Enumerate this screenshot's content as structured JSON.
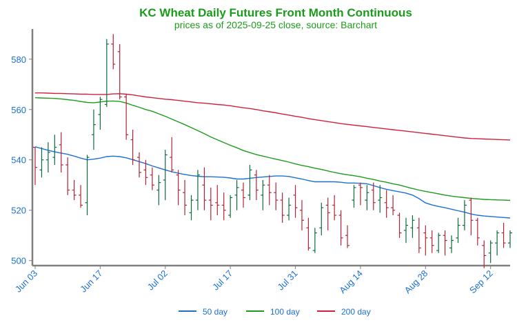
{
  "colors": {
    "title": "#1a9c1a",
    "axis_text": "#1a6fd6",
    "axis_line": "#7f7f7f",
    "up_bar": "#0a6b3b",
    "down_bar": "#b22234",
    "ma50": "#1a6fd6",
    "ma100": "#1a9c1a",
    "ma200": "#d0203a"
  },
  "chart_data": {
    "type": "ohlc",
    "title": "KC Wheat Daily Futures Front Month Continuous",
    "subtitle": "prices as of 2025-09-25 close, source: Barchart",
    "ylim": [
      498,
      592
    ],
    "yticks": [
      500,
      520,
      540,
      560,
      580
    ],
    "x_tick_labels": [
      "Jun 03",
      "Jun 17",
      "Jul 02",
      "Jul 17",
      "Jul 31",
      "Aug 14",
      "Aug 28",
      "Sep 12"
    ],
    "x_tick_index": [
      0,
      10,
      20,
      30,
      40,
      50,
      60,
      70
    ],
    "grid": false,
    "legend_position": "bottom",
    "ohlc": [
      [
        545,
        545,
        530,
        537
      ],
      [
        536,
        545,
        533,
        540
      ],
      [
        540,
        547,
        535,
        543
      ],
      [
        541,
        550,
        538,
        545
      ],
      [
        546,
        551,
        535,
        538
      ],
      [
        538,
        541,
        526,
        528
      ],
      [
        528,
        532,
        524,
        526
      ],
      [
        526,
        530,
        521,
        522
      ],
      [
        523,
        542,
        518,
        541
      ],
      [
        550,
        560,
        544,
        554
      ],
      [
        558,
        565,
        552,
        564
      ],
      [
        562,
        588,
        561,
        586
      ],
      [
        586,
        590,
        576,
        578
      ],
      [
        583,
        586,
        564,
        565
      ],
      [
        565,
        566,
        548,
        550
      ],
      [
        548,
        552,
        538,
        540
      ],
      [
        541,
        543,
        533,
        535
      ],
      [
        536,
        540,
        530,
        533
      ],
      [
        534,
        537,
        528,
        530
      ],
      [
        528,
        534,
        522,
        531
      ],
      [
        532,
        544,
        524,
        542
      ],
      [
        541,
        549,
        535,
        536
      ],
      [
        534,
        536,
        522,
        528
      ],
      [
        527,
        532,
        518,
        522
      ],
      [
        519,
        526,
        516,
        524
      ],
      [
        524,
        536,
        520,
        534
      ],
      [
        530,
        537,
        520,
        524
      ],
      [
        524,
        529,
        516,
        522
      ],
      [
        523,
        530,
        518,
        522
      ],
      [
        522,
        527,
        516,
        520
      ],
      [
        518,
        526,
        517,
        525
      ],
      [
        526,
        532,
        520,
        529
      ],
      [
        528,
        531,
        521,
        525
      ],
      [
        526,
        538,
        524,
        536
      ],
      [
        534,
        536,
        524,
        528
      ],
      [
        526,
        532,
        520,
        530
      ],
      [
        530,
        534,
        522,
        527
      ],
      [
        527,
        531,
        520,
        524
      ],
      [
        524,
        527,
        515,
        518
      ],
      [
        518,
        525,
        516,
        522
      ],
      [
        526,
        530,
        517,
        521
      ],
      [
        520,
        524,
        512,
        516
      ],
      [
        513,
        517,
        504,
        505
      ],
      [
        504,
        513,
        503,
        511
      ],
      [
        513,
        523,
        510,
        521
      ],
      [
        522,
        525,
        512,
        519
      ],
      [
        522,
        526,
        516,
        518
      ],
      [
        518,
        520,
        506,
        509
      ],
      [
        510,
        514,
        505,
        506
      ],
      [
        524,
        530,
        521,
        529
      ],
      [
        530,
        531,
        522,
        529
      ],
      [
        524,
        530,
        520,
        527
      ],
      [
        528,
        531,
        520,
        523
      ],
      [
        524,
        530,
        519,
        525
      ],
      [
        523,
        528,
        517,
        521
      ],
      [
        521,
        526,
        518,
        520
      ],
      [
        518,
        519,
        509,
        511
      ],
      [
        512,
        517,
        507,
        514
      ],
      [
        513,
        518,
        509,
        516
      ],
      [
        513,
        517,
        503,
        505
      ],
      [
        511,
        514,
        502,
        509
      ],
      [
        509,
        512,
        503,
        506
      ],
      [
        504,
        511,
        503,
        510
      ],
      [
        510,
        512,
        502,
        508
      ],
      [
        505,
        510,
        503,
        508
      ],
      [
        509,
        517,
        507,
        514
      ],
      [
        514,
        524,
        512,
        522
      ],
      [
        524,
        525,
        510,
        516
      ],
      [
        516,
        517,
        506,
        509
      ],
      [
        506,
        508,
        497,
        502
      ],
      [
        503,
        508,
        499,
        507
      ],
      [
        507,
        512,
        502,
        511
      ],
      [
        511,
        515,
        505,
        507
      ],
      [
        507,
        512,
        505,
        511
      ]
    ],
    "series": [
      {
        "name": "50 day",
        "values": [
          545.2,
          544.5,
          543.8,
          543.2,
          542.7,
          542.2,
          541.5,
          540.7,
          540.0,
          540.3,
          540.7,
          541.3,
          541.5,
          541.3,
          540.8,
          540.1,
          539.3,
          538.5,
          537.6,
          536.8,
          536.0,
          535.3,
          534.7,
          534.2,
          533.8,
          533.5,
          533.3,
          533.3,
          533.2,
          533.1,
          532.8,
          532.4,
          532.4,
          532.7,
          533.0,
          533.2,
          533.4,
          533.6,
          533.6,
          533.4,
          532.9,
          532.4,
          531.8,
          531.3,
          531.3,
          531.3,
          531.3,
          531.1,
          530.8,
          530.8,
          530.7,
          530.5,
          529.8,
          529.0,
          528.3,
          527.8,
          527.3,
          526.8,
          526.0,
          524.6,
          522.9,
          522.1,
          521.5,
          521.0,
          520.4,
          519.8,
          519.2,
          518.5,
          518.0,
          517.7,
          517.5,
          517.3,
          517.1,
          516.9
        ]
      },
      {
        "name": "100 day",
        "values": [
          564.7,
          564.6,
          564.5,
          564.4,
          564.2,
          563.9,
          563.6,
          563.2,
          562.8,
          562.7,
          563.0,
          563.3,
          563.4,
          563.2,
          562.6,
          561.7,
          560.9,
          560.0,
          559.3,
          558.3,
          557.3,
          556.2,
          555.1,
          554.0,
          552.8,
          551.6,
          550.4,
          549.1,
          548.0,
          546.9,
          545.8,
          544.8,
          543.7,
          542.9,
          542.1,
          541.5,
          540.9,
          540.3,
          539.7,
          539.1,
          538.4,
          537.8,
          537.3,
          536.7,
          536.2,
          535.6,
          535.0,
          534.5,
          534.1,
          533.7,
          533.3,
          532.7,
          532.2,
          531.6,
          531.1,
          530.5,
          530.0,
          529.3,
          528.6,
          528.0,
          527.5,
          527.0,
          526.5,
          526.0,
          525.6,
          525.3,
          525.0,
          524.7,
          524.5,
          524.3,
          524.2,
          524.1,
          524.0,
          523.9
        ]
      },
      {
        "name": "200 day",
        "values": [
          566.6,
          566.6,
          566.5,
          566.4,
          566.4,
          566.3,
          566.2,
          566.1,
          566.1,
          566.0,
          566.0,
          566.0,
          566.2,
          566.3,
          566.1,
          565.8,
          565.4,
          565.0,
          564.7,
          564.4,
          564.1,
          563.9,
          563.6,
          563.3,
          563.0,
          562.7,
          562.5,
          562.3,
          562.0,
          561.8,
          561.5,
          561.1,
          560.7,
          560.4,
          560.0,
          559.5,
          559.1,
          558.7,
          558.2,
          557.8,
          557.3,
          556.9,
          556.4,
          556.0,
          555.6,
          555.2,
          554.8,
          554.4,
          554.1,
          553.8,
          553.5,
          553.2,
          552.9,
          552.6,
          552.3,
          552.0,
          551.7,
          551.4,
          551.1,
          550.8,
          550.5,
          550.2,
          549.9,
          549.6,
          549.3,
          549.0,
          548.7,
          548.5,
          548.4,
          548.3,
          548.2,
          548.1,
          548.0,
          547.9
        ]
      }
    ]
  }
}
